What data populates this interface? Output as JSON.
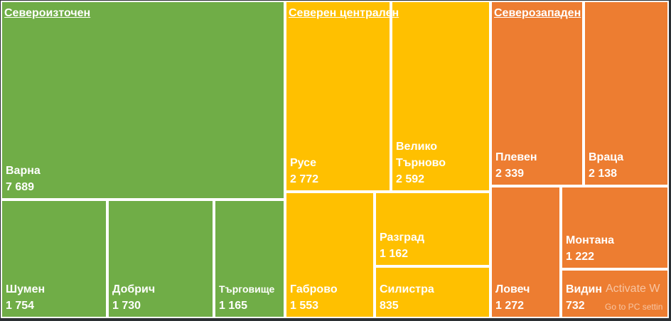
{
  "chart_data": {
    "type": "treemap",
    "groups": [
      {
        "name": "Североизточен",
        "color": "#70ad47",
        "items": [
          {
            "name": "Варна",
            "value": 7689,
            "label": "7 689"
          },
          {
            "name": "Шумен",
            "value": 1754,
            "label": "1 754"
          },
          {
            "name": "Добрич",
            "value": 1730,
            "label": "1 730"
          },
          {
            "name": "Търговище",
            "value": 1165,
            "label": "1 165"
          }
        ]
      },
      {
        "name": "Северен централен",
        "color": "#ffc000",
        "items": [
          {
            "name": "Русе",
            "value": 2772,
            "label": "2 772"
          },
          {
            "name": "Велико\nТърново",
            "value": 2592,
            "label": "2 592"
          },
          {
            "name": "Габрово",
            "value": 1553,
            "label": "1 553"
          },
          {
            "name": "Разград",
            "value": 1162,
            "label": "1 162"
          },
          {
            "name": "Силистра",
            "value": 835,
            "label": "835"
          }
        ]
      },
      {
        "name": "Северозападен",
        "color": "#ed7d31",
        "items": [
          {
            "name": "Плевен",
            "value": 2339,
            "label": "2 339"
          },
          {
            "name": "Враца",
            "value": 2138,
            "label": "2 138"
          },
          {
            "name": "Ловеч",
            "value": 1272,
            "label": "1 272"
          },
          {
            "name": "Монтана",
            "value": 1222,
            "label": "1 222"
          },
          {
            "name": "Видин",
            "value": 732,
            "label": "732"
          }
        ]
      }
    ]
  },
  "watermark": {
    "line1": "Activate W",
    "line2": "Go to PC settin"
  }
}
